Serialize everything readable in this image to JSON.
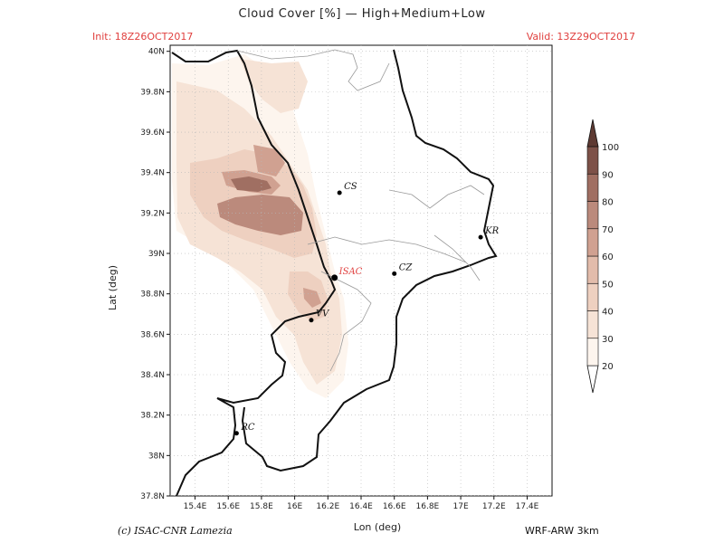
{
  "header": {
    "title": "Cloud Cover [%] — High+Medium+Low",
    "init": "Init: 18Z26OCT2017",
    "valid": "Valid: 13Z29OCT2017"
  },
  "axes": {
    "xlabel": "Lon (deg)",
    "ylabel": "Lat (deg)",
    "lon_ticks": [
      "15.4E",
      "15.6E",
      "15.8E",
      "16E",
      "16.2E",
      "16.4E",
      "16.6E",
      "16.8E",
      "17E",
      "17.2E",
      "17.4E"
    ],
    "lat_ticks": [
      "37.8N",
      "38N",
      "38.2N",
      "38.4N",
      "38.6N",
      "38.8N",
      "39N",
      "39.2N",
      "39.4N",
      "39.6N",
      "39.8N",
      "40N"
    ],
    "lon_range": [
      15.25,
      17.55
    ],
    "lat_range": [
      37.8,
      40.03
    ]
  },
  "cities": [
    {
      "label": "CS",
      "lon": 16.27,
      "lat": 39.3,
      "color": "#111111"
    },
    {
      "label": "ISAC",
      "lon": 16.24,
      "lat": 38.88,
      "color": "#e0403f"
    },
    {
      "label": "CZ",
      "lon": 16.6,
      "lat": 38.9,
      "color": "#111111"
    },
    {
      "label": "KR",
      "lon": 17.12,
      "lat": 39.08,
      "color": "#111111"
    },
    {
      "label": "VV",
      "lon": 16.1,
      "lat": 38.67,
      "color": "#111111"
    },
    {
      "label": "RC",
      "lon": 15.65,
      "lat": 38.11,
      "color": "#111111"
    }
  ],
  "colorbar": {
    "levels": [
      "20",
      "30",
      "40",
      "50",
      "60",
      "70",
      "80",
      "90",
      "100"
    ],
    "colors": [
      "#fdf5ee",
      "#f6e3d6",
      "#eed0c0",
      "#e2bcab",
      "#d0a191",
      "#bb8a7c",
      "#a06f62",
      "#7d5148"
    ]
  },
  "footer": {
    "credit": "(c) ISAC-CNR Lamezia",
    "model": "WRF-ARW 3km"
  }
}
